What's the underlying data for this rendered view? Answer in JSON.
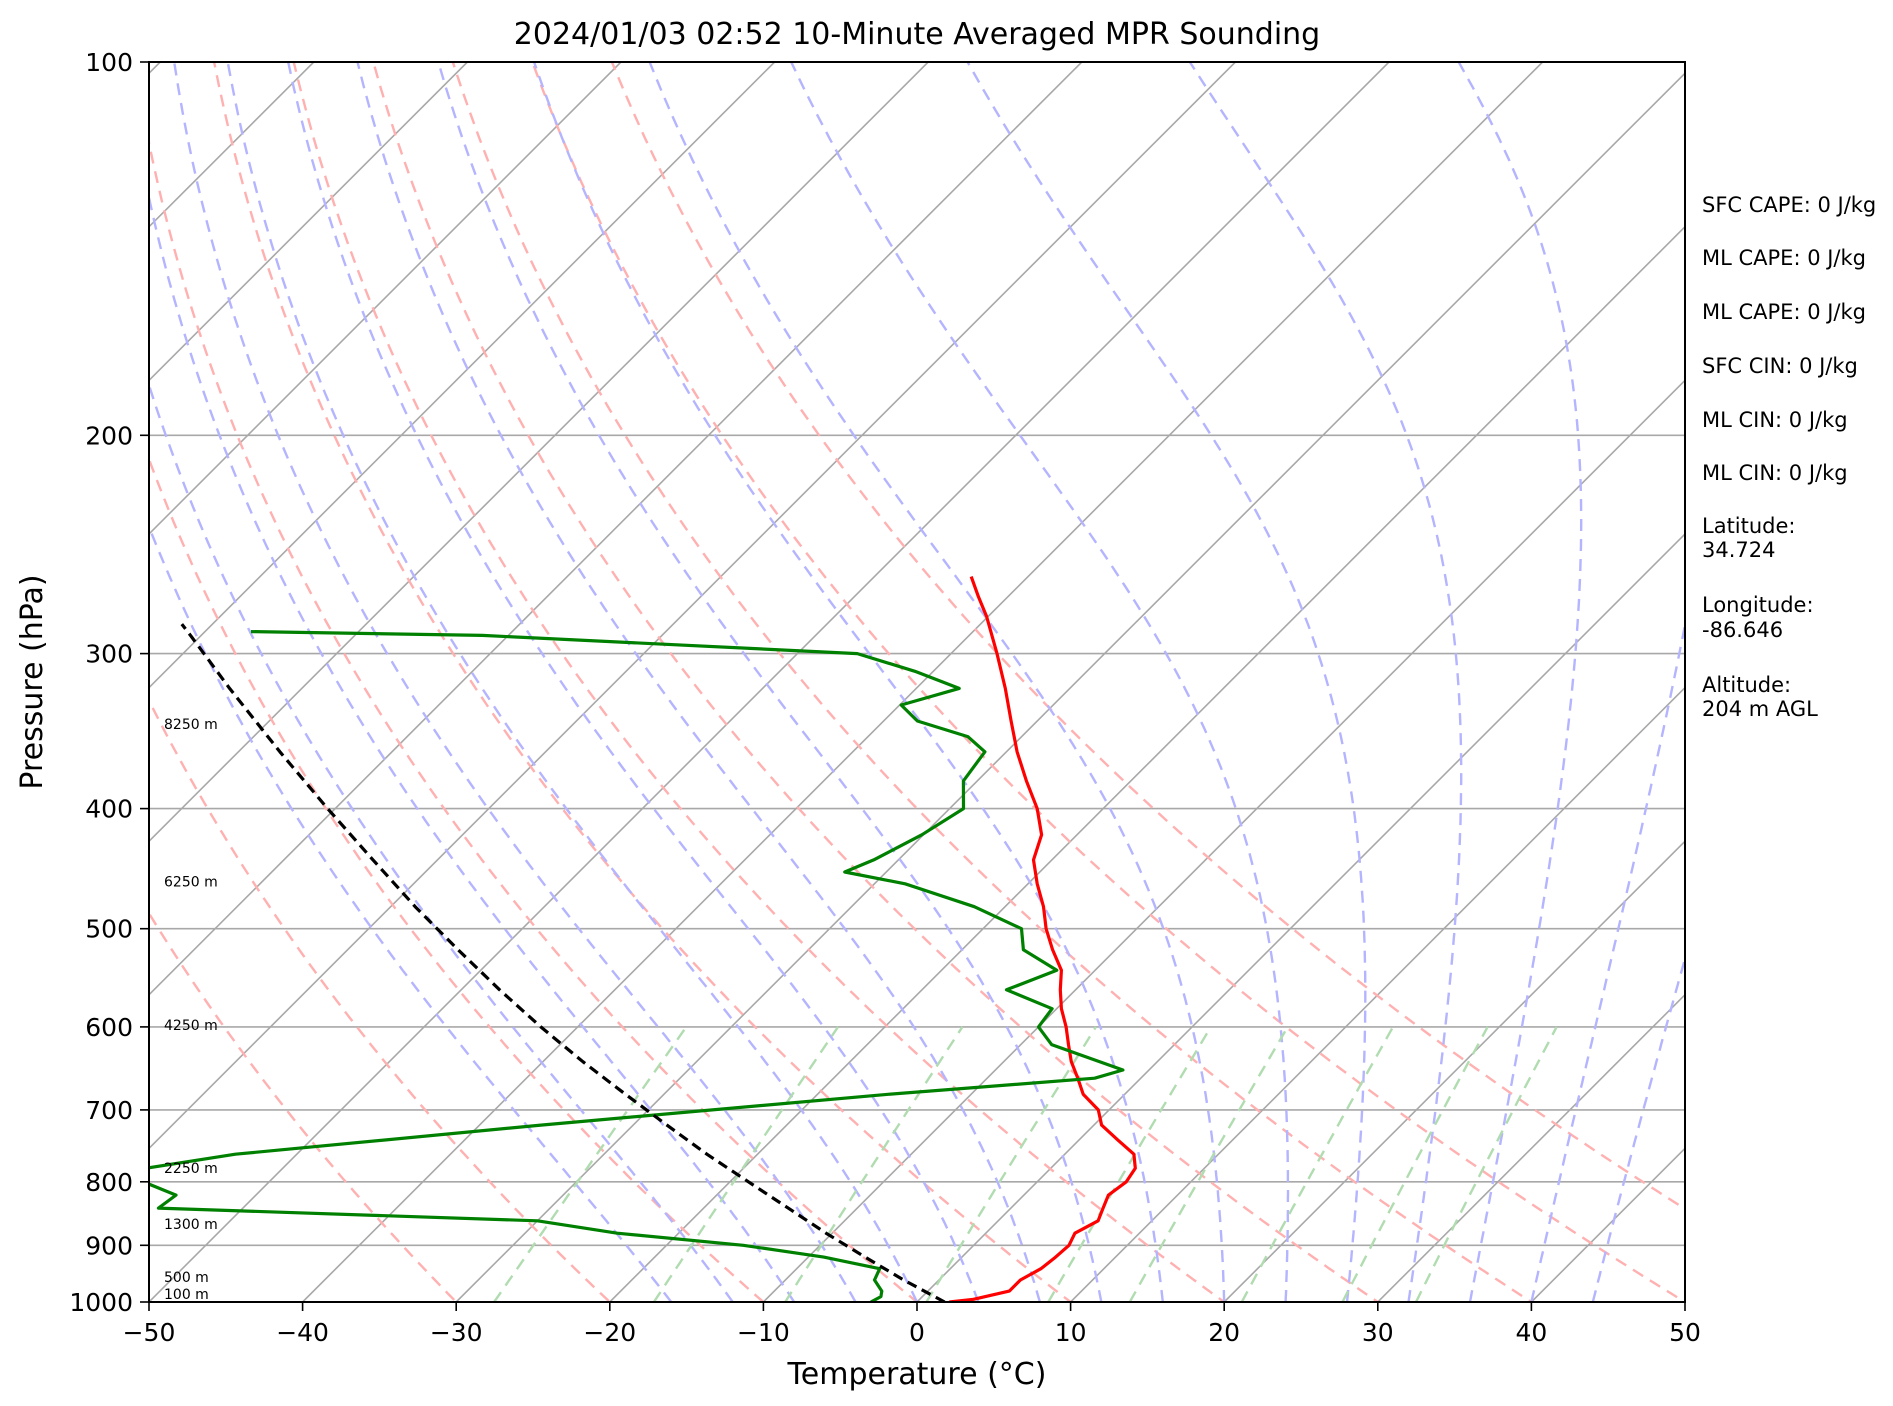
{
  "chart_data": {
    "type": "line",
    "title": "2024/01/03 02:52 10-Minute Averaged MPR Sounding",
    "xlabel": "Temperature (°C)",
    "ylabel": "Pressure (hPa)",
    "xlim": [
      -50,
      50
    ],
    "ylim": [
      1000,
      100
    ],
    "y_scale": "log",
    "skew_deg": 45,
    "x_ticks": [
      "−50",
      "−40",
      "−30",
      "−20",
      "−10",
      "0",
      "10",
      "20",
      "30",
      "40",
      "50"
    ],
    "x_tick_values": [
      -50,
      -40,
      -30,
      -20,
      -10,
      0,
      10,
      20,
      30,
      40,
      50
    ],
    "y_ticks": [
      "100",
      "200",
      "300",
      "400",
      "500",
      "600",
      "700",
      "800",
      "900",
      "1000"
    ],
    "y_tick_values": [
      100,
      200,
      300,
      400,
      500,
      600,
      700,
      800,
      900,
      1000
    ],
    "grid": true,
    "series": [
      {
        "color": "#ff0000",
        "p": [
          1000,
          995,
          980,
          960,
          940,
          920,
          900,
          880,
          860,
          840,
          820,
          800,
          780,
          760,
          740,
          720,
          700,
          680,
          660,
          640,
          620,
          600,
          580,
          560,
          540,
          520,
          500,
          480,
          460,
          440,
          420,
          400,
          380,
          360,
          340,
          320,
          300,
          280,
          270,
          260
        ],
        "t": [
          2.1,
          3.5,
          5.3,
          5.3,
          5.9,
          6.1,
          6.2,
          5.8,
          6.5,
          6.0,
          5.5,
          5.8,
          5.5,
          4.5,
          2.5,
          0.5,
          -0.7,
          -2.7,
          -4.1,
          -5.6,
          -6.9,
          -8.2,
          -9.7,
          -11.0,
          -12.2,
          -14.1,
          -15.9,
          -17.5,
          -19.4,
          -21.2,
          -22.3,
          -24.3,
          -26.8,
          -29.3,
          -31.7,
          -34.2,
          -37.0,
          -40.1,
          -41.9,
          -43.7
        ]
      },
      {
        "color": "#008000",
        "p": [
          1000,
          990,
          980,
          960,
          940,
          920,
          900,
          880,
          860,
          840,
          820,
          800,
          780,
          760,
          720,
          680,
          660,
          650,
          620,
          600,
          580,
          560,
          540,
          520,
          500,
          480,
          460,
          450,
          440,
          420,
          400,
          380,
          360,
          350,
          340,
          330,
          320,
          310,
          300,
          290,
          288
        ],
        "t": [
          -3.0,
          -2.7,
          -3.0,
          -4.2,
          -4.6,
          -9.0,
          -15.0,
          -24.0,
          -30.0,
          -55.5,
          -55.2,
          -58.2,
          -58.9,
          -54.0,
          -36.0,
          -15.4,
          -3.0,
          -1.7,
          -8.0,
          -10.0,
          -10.3,
          -14.5,
          -12.5,
          -16.0,
          -17.5,
          -22.0,
          -28.0,
          -32.7,
          -31.6,
          -30.1,
          -29.1,
          -30.9,
          -31.4,
          -33.5,
          -37.8,
          -39.9,
          -37.2,
          -41.2,
          -46.1,
          -71.7,
          -87.0
        ]
      },
      {
        "color": "#000000",
        "dashed": true,
        "p": [
          1000,
          960,
          920,
          880,
          840,
          800,
          760,
          720,
          680,
          640,
          600,
          560,
          520,
          480,
          440,
          400,
          360,
          320,
          290,
          284
        ],
        "t": [
          1.8,
          -2.3,
          -6.3,
          -10.4,
          -14.5,
          -18.8,
          -23.3,
          -27.8,
          -32.5,
          -37.4,
          -42.4,
          -47.5,
          -52.8,
          -58.4,
          -64.2,
          -70.5,
          -77.3,
          -84.7,
          -90.7,
          -92.0
        ]
      }
    ],
    "height_labels": [
      "8250 m",
      "6250 m",
      "4250 m",
      "2250 m",
      "1300 m",
      "500 m",
      "100 m"
    ],
    "height_label_pressures": [
      342,
      458,
      598,
      780,
      865,
      955,
      1000
    ]
  },
  "info": {
    "sfc_cape": "SFC CAPE: 0 J/kg",
    "ml_cape": "ML CAPE: 0 J/kg",
    "ml_cape_2": "ML CAPE: 0 J/kg",
    "sfc_cin": "SFC CIN: 0 J/kg",
    "ml_cin": "ML CIN: 0 J/kg",
    "ml_cin_2": "ML CIN: 0 J/kg",
    "latitude_label": "Latitude:",
    "latitude_value": "34.724",
    "longitude_label": "Longitude:",
    "longitude_value": "-86.646",
    "altitude_label": "Altitude:",
    "altitude_value": "204 m AGL"
  },
  "colors": {
    "temperature": "#ff0000",
    "dewpoint": "#008000",
    "parcel": "#000000",
    "isotherm": "#a8a8a8",
    "dry_adiabat": "#ffb0b0",
    "moist_adiabat": "#b4b4ff",
    "mixing_ratio": "#b0dcb0"
  }
}
